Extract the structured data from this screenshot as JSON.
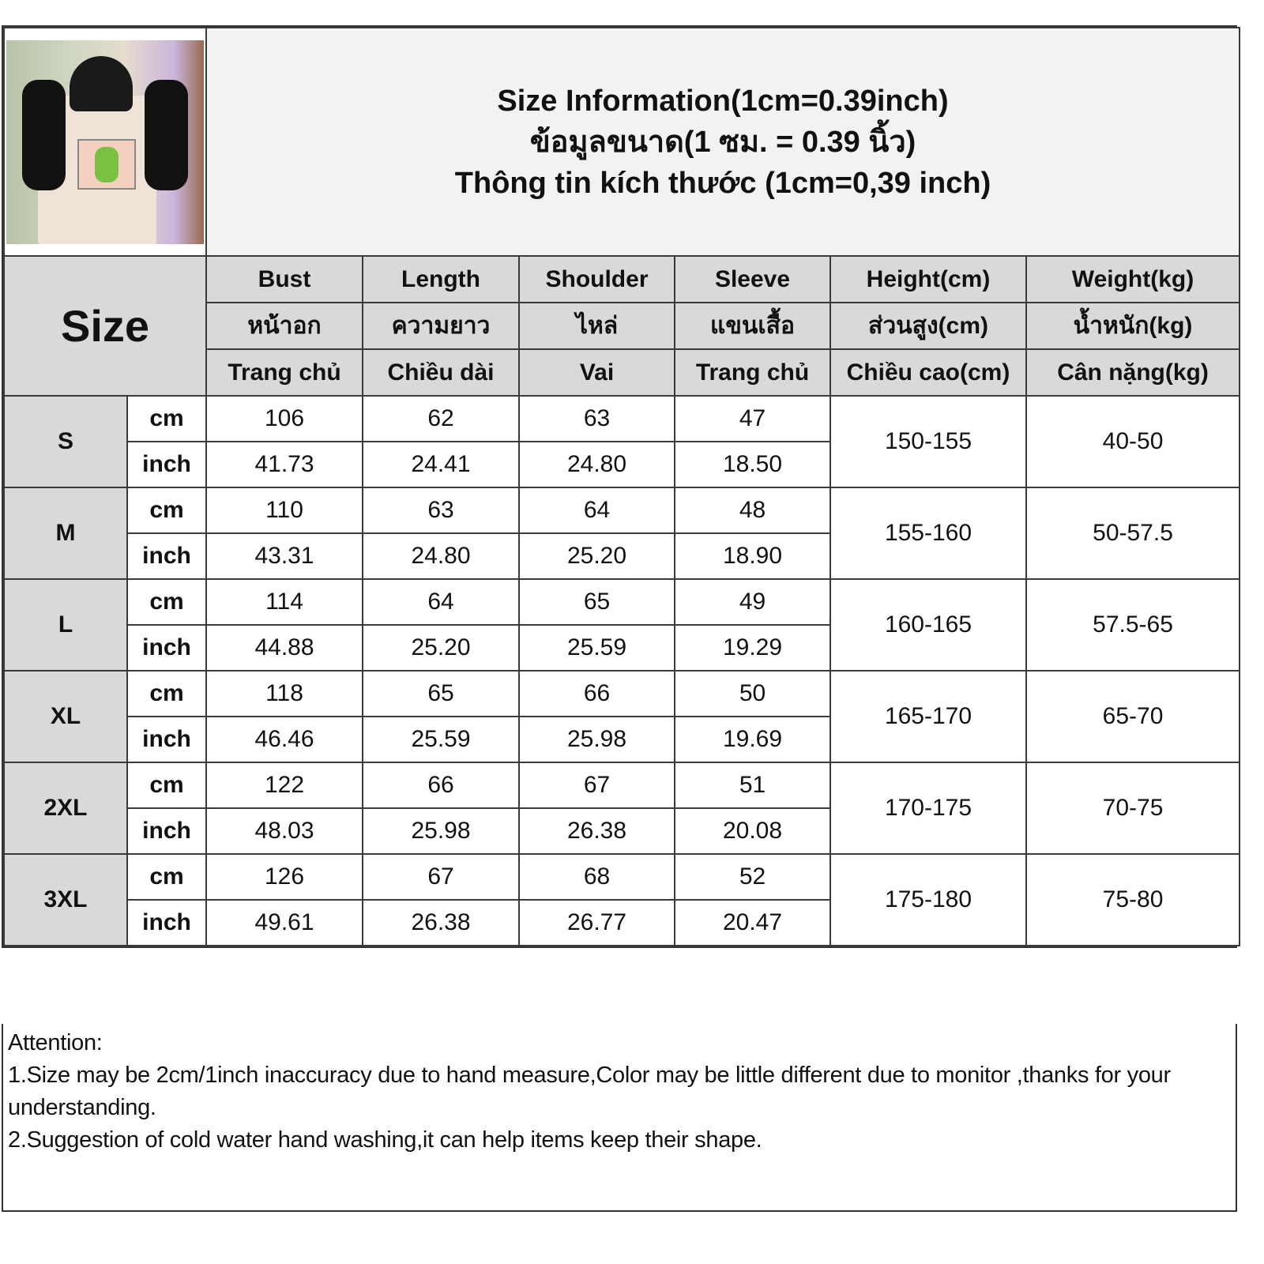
{
  "header": {
    "title_en": "Size Information(1cm=0.39inch)",
    "title_th": "ข้อมูลขนาด(1 ซม. = 0.39 นิ้ว)",
    "title_vi": "Thông tin kích thước (1cm=0,39 inch)",
    "size_label": "Size"
  },
  "columns": [
    {
      "en": "Bust",
      "th": "หน้าอก",
      "vi": "Trang chủ"
    },
    {
      "en": "Length",
      "th": "ความยาว",
      "vi": "Chiều dài"
    },
    {
      "en": "Shoulder",
      "th": "ไหล่",
      "vi": "Vai"
    },
    {
      "en": "Sleeve",
      "th": "แขนเสื้อ",
      "vi": "Trang chủ"
    },
    {
      "en": "Height(cm)",
      "th": "ส่วนสูง(cm)",
      "vi": "Chiều cao(cm)"
    },
    {
      "en": "Weight(kg)",
      "th": "น้ำหนัก(kg)",
      "vi": "Cân nặng(kg)"
    }
  ],
  "units": {
    "cm": "cm",
    "inch": "inch"
  },
  "rows": [
    {
      "size": "S",
      "cm": [
        "106",
        "62",
        "63",
        "47"
      ],
      "inch": [
        "41.73",
        "24.41",
        "24.80",
        "18.50"
      ],
      "height": "150-155",
      "weight": "40-50"
    },
    {
      "size": "M",
      "cm": [
        "110",
        "63",
        "64",
        "48"
      ],
      "inch": [
        "43.31",
        "24.80",
        "25.20",
        "18.90"
      ],
      "height": "155-160",
      "weight": "50-57.5"
    },
    {
      "size": "L",
      "cm": [
        "114",
        "64",
        "65",
        "49"
      ],
      "inch": [
        "44.88",
        "25.20",
        "25.59",
        "19.29"
      ],
      "height": "160-165",
      "weight": "57.5-65"
    },
    {
      "size": "XL",
      "cm": [
        "118",
        "65",
        "66",
        "50"
      ],
      "inch": [
        "46.46",
        "25.59",
        "25.98",
        "19.69"
      ],
      "height": "165-170",
      "weight": "65-70"
    },
    {
      "size": "2XL",
      "cm": [
        "122",
        "66",
        "67",
        "51"
      ],
      "inch": [
        "48.03",
        "25.98",
        "26.38",
        "20.08"
      ],
      "height": "170-175",
      "weight": "70-75"
    },
    {
      "size": "3XL",
      "cm": [
        "126",
        "67",
        "68",
        "52"
      ],
      "inch": [
        "49.61",
        "26.38",
        "26.77",
        "20.47"
      ],
      "height": "175-180",
      "weight": "75-80"
    }
  ],
  "attention": {
    "heading": "Attention:",
    "note1": "1.Size may be 2cm/1inch inaccuracy due to hand measure,Color may be little different due to monitor ,thanks for your understanding.",
    "note2": "2.Suggestion of cold water hand washing,it can help items keep their shape."
  },
  "colors": {
    "label_bg": "#d9d9d9",
    "title_bg": "#f2f2f2",
    "border": "#3a3a3a"
  }
}
